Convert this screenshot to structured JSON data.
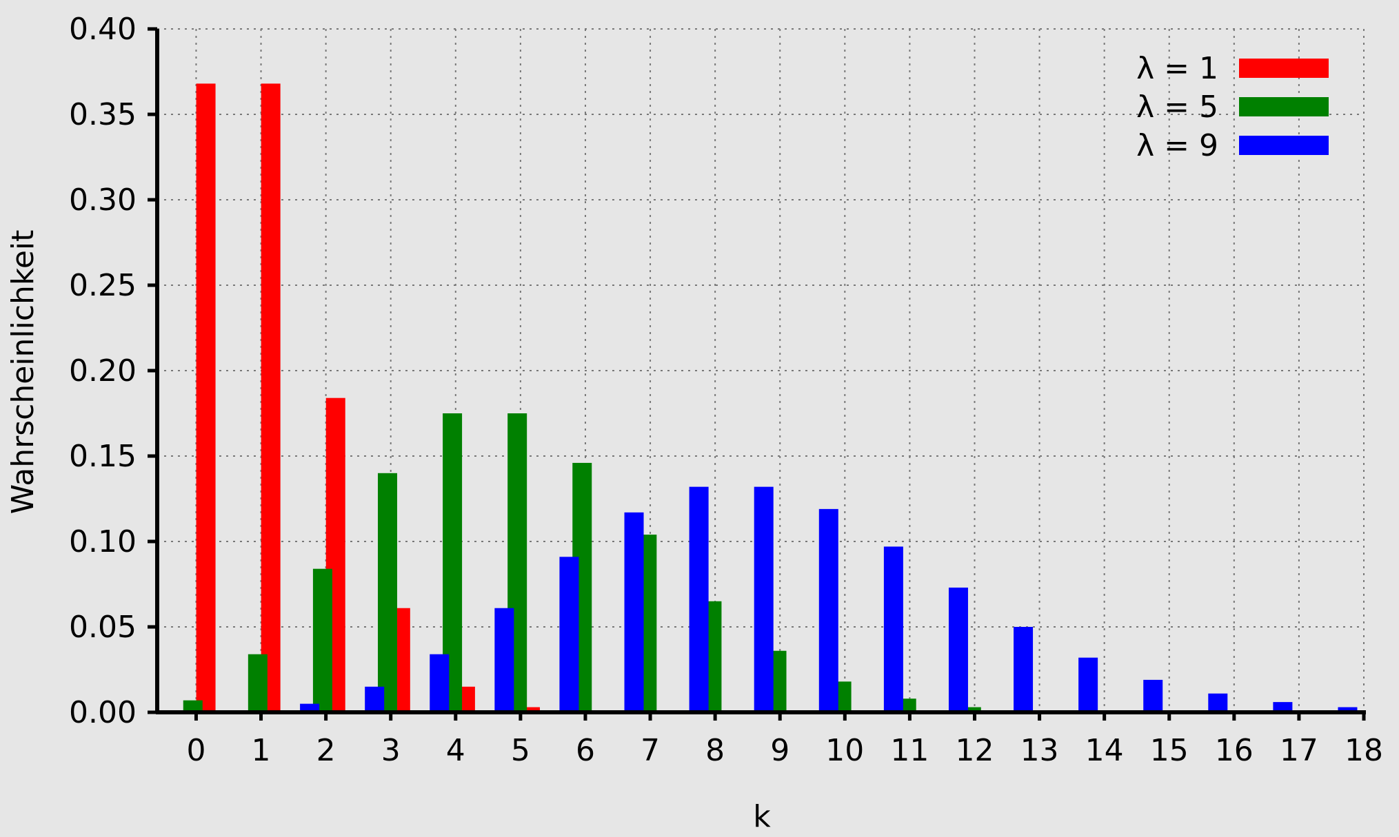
{
  "chart_data": {
    "type": "bar",
    "title": "",
    "xlabel": "k",
    "ylabel": "Wahrscheinlichkeit",
    "ylim": [
      0,
      0.4
    ],
    "xlim": [
      -0.6,
      18
    ],
    "yticks": [
      "0.00",
      "0.05",
      "0.10",
      "0.15",
      "0.20",
      "0.25",
      "0.30",
      "0.35",
      "0.40"
    ],
    "categories": [
      "0",
      "1",
      "2",
      "3",
      "4",
      "5",
      "6",
      "7",
      "8",
      "9",
      "10",
      "11",
      "12",
      "13",
      "14",
      "15",
      "16",
      "17",
      "18"
    ],
    "grid": true,
    "legend_position": "top-right",
    "background": "#e6e6e6",
    "series": [
      {
        "name": "λ = 1",
        "color": "#ff0000",
        "offset": 0.15,
        "values": [
          0.368,
          0.368,
          0.184,
          0.061,
          0.015,
          0.003,
          0.0005,
          0.0001,
          0,
          0,
          0,
          0,
          0,
          0,
          0,
          0,
          0,
          0,
          0
        ]
      },
      {
        "name": "λ = 5",
        "color": "#008000",
        "offset": -0.05,
        "values": [
          0.007,
          0.034,
          0.084,
          0.14,
          0.175,
          0.175,
          0.146,
          0.104,
          0.065,
          0.036,
          0.018,
          0.008,
          0.003,
          0.001,
          0.0005,
          0.0002,
          0,
          0,
          0
        ]
      },
      {
        "name": "λ = 9",
        "color": "#0000ff",
        "offset": -0.25,
        "values": [
          0.0001,
          0.001,
          0.005,
          0.015,
          0.034,
          0.061,
          0.091,
          0.117,
          0.132,
          0.132,
          0.119,
          0.097,
          0.073,
          0.05,
          0.032,
          0.019,
          0.011,
          0.006,
          0.003
        ]
      }
    ]
  }
}
